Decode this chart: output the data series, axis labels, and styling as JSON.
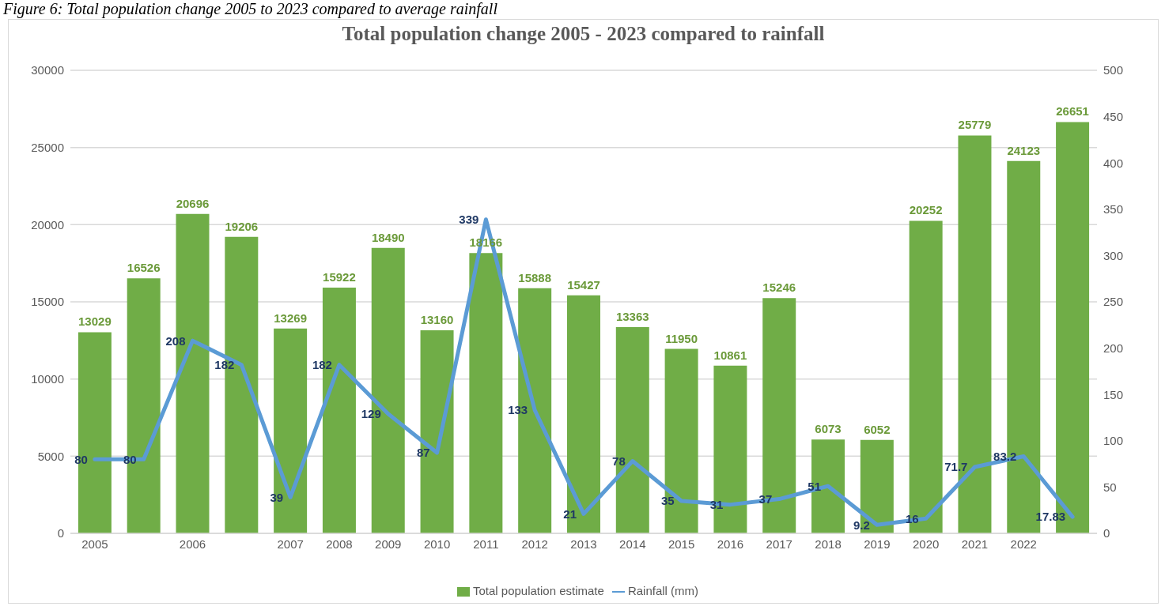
{
  "chart_data": {
    "type": "bar",
    "title": "Total population change 2005 - 2023 compared to rainfall",
    "annotations": [
      "Figure 6: Total population change 2005 to 2023 compared to average rainfall"
    ],
    "categories": [
      "2005",
      null,
      "2006",
      null,
      "2007",
      "2008",
      "2009",
      "2010",
      "2011",
      "2012",
      "2013",
      "2014",
      "2015",
      "2016",
      "2017",
      "2018",
      "2019",
      "2020",
      "2021",
      "2022",
      null
    ],
    "series": [
      {
        "name": "Total population estimate",
        "color": "#70ad47",
        "values": [
          13029,
          16526,
          20696,
          19206,
          13269,
          15922,
          18490,
          13160,
          18166,
          15888,
          15427,
          13363,
          11950,
          10861,
          15246,
          6073,
          6052,
          20252,
          25779,
          24123,
          26651
        ]
      },
      {
        "name": "Rainfall (mm)",
        "type": "line",
        "axis": "y2",
        "color": "#5b9bd5",
        "values": [
          80,
          80,
          208,
          182,
          39,
          182,
          129,
          87,
          339,
          133,
          21,
          78,
          35,
          31,
          37,
          51,
          9.2,
          16,
          71.7,
          83.2,
          17.83
        ]
      }
    ],
    "ylim": [
      0,
      30000
    ],
    "yticks": [
      0,
      5000,
      10000,
      15000,
      20000,
      25000,
      30000
    ],
    "y2lim": [
      0,
      500
    ],
    "y2ticks": [
      0,
      50,
      100,
      150,
      200,
      250,
      300,
      350,
      400,
      450,
      500
    ],
    "grid": "y",
    "legend": "bottom",
    "data_labels": true,
    "marker": "none",
    "line_style": "solid"
  }
}
